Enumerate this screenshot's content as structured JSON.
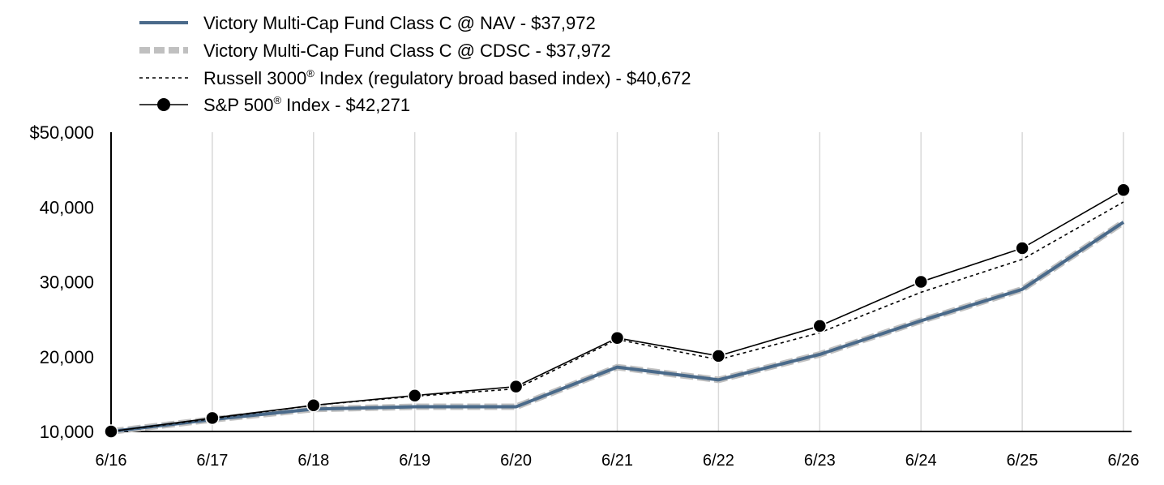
{
  "chart_data": {
    "type": "line",
    "categories": [
      "6/16",
      "6/17",
      "6/18",
      "6/19",
      "6/20",
      "6/21",
      "6/22",
      "6/23",
      "6/24",
      "6/25",
      "6/26"
    ],
    "series": [
      {
        "name": "Victory Multi-Cap Fund Class C @ NAV - $37,972",
        "legend_parts": [
          "Victory Multi-Cap Fund Class C @ NAV - $37,972"
        ],
        "style": "solid",
        "color": "#4a6a8a",
        "values": [
          10000,
          11600,
          13000,
          13300,
          13300,
          18600,
          16900,
          20300,
          24800,
          29000,
          37972
        ]
      },
      {
        "name": "Victory Multi-Cap Fund Class C @ CDSC - $37,972",
        "legend_parts": [
          "Victory Multi-Cap Fund Class C @ CDSC - $37,972"
        ],
        "style": "dashed-wide",
        "color": "#c0c0c0",
        "values": [
          10000,
          11600,
          13000,
          13300,
          13300,
          18600,
          16900,
          20300,
          24800,
          29000,
          37972
        ]
      },
      {
        "name": "Russell 3000® Index (regulatory broad based index) - $40,672",
        "legend_parts": [
          "Russell 3000",
          "®",
          " Index (regulatory broad based index) - $40,672"
        ],
        "style": "dotted",
        "color": "#000000",
        "values": [
          10000,
          11700,
          13500,
          14700,
          15700,
          22300,
          19600,
          23200,
          28600,
          33000,
          40672
        ]
      },
      {
        "name": "S&P 500® Index - $42,271",
        "legend_parts": [
          "S&P 500",
          "®",
          " Index - $42,271"
        ],
        "style": "solid-marker",
        "color": "#000000",
        "values": [
          10000,
          11800,
          13500,
          14800,
          16000,
          22500,
          20100,
          24100,
          30000,
          34500,
          42271
        ]
      }
    ],
    "yticks": [
      "$50,000",
      "40,000",
      "30,000",
      "20,000",
      "10,000"
    ],
    "ytick_values": [
      50000,
      40000,
      30000,
      20000,
      10000
    ],
    "ylim": [
      10000,
      50000
    ],
    "grid": "vertical",
    "legend_position": "top-left"
  }
}
